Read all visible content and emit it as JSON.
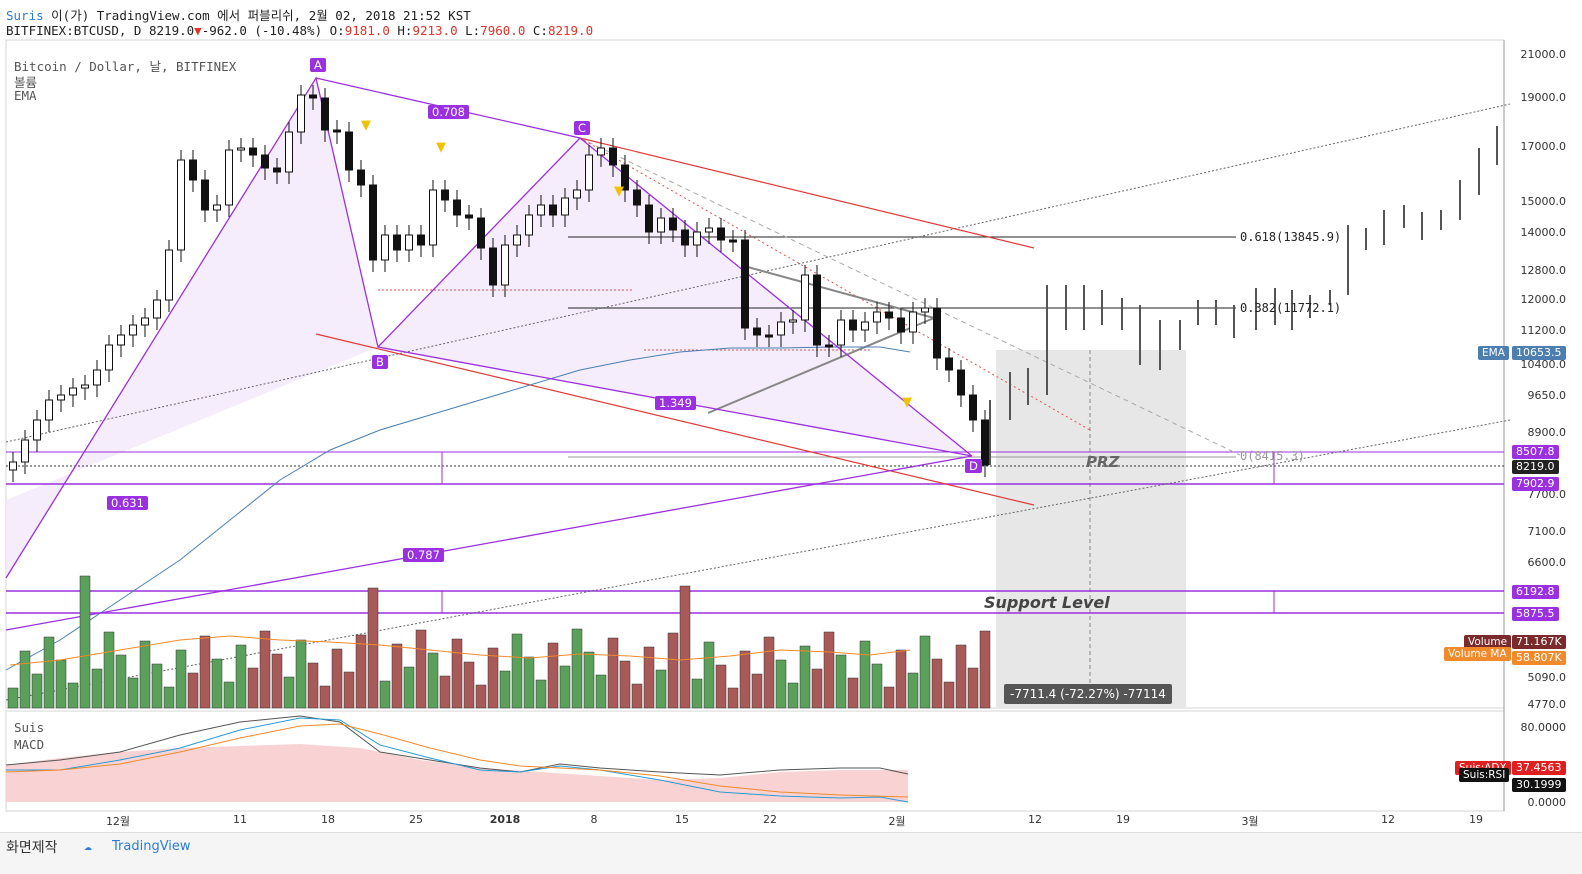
{
  "header": {
    "author": "Suris",
    "published": "이(가) TradingView.com 에서 퍼블리쉬, 2월 02, 2018 21:52 KST",
    "symbol": "BITFINEX:BTCUSD, D",
    "last": "8219.0",
    "change": "-962.0 (-10.48%)",
    "open_label": "O:",
    "open": "9181.0",
    "high_label": "H:",
    "high": "9213.0",
    "low_label": "L:",
    "low": "7960.0",
    "close_label": "C:",
    "close": "8219.0"
  },
  "legend": {
    "title": "Bitcoin / Dollar, 날, BITFINEX",
    "volume": "볼륨",
    "ema": "EMA",
    "osc1": "Suis",
    "osc2": "MACD"
  },
  "pattern": {
    "A": "A",
    "B": "B",
    "C": "C",
    "D": "D",
    "r_ab": "0.708",
    "r_bc": "0.631",
    "r_cd": "1.349",
    "r_xd": "0.787"
  },
  "fib": {
    "f618": "0.618(13845.9)",
    "f382": "0.382(11772.1)",
    "f0": "0(8415.3)"
  },
  "annotations": {
    "prz": "PRZ",
    "support": "Support Level",
    "measure": "-7711.4 (-72.27%) -77114"
  },
  "y_axis": [
    "21000.0",
    "19000.0",
    "17000.0",
    "15000.0",
    "14000.0",
    "12800.0",
    "12000.0",
    "11200.0",
    "10400.0",
    "9650.0",
    "8900.0",
    "7700.0",
    "7100.0",
    "6600.0",
    "5090.0",
    "4770.0"
  ],
  "x_axis": [
    "12월",
    "11",
    "18",
    "25",
    "2018",
    "8",
    "15",
    "22",
    "2월",
    "12",
    "19",
    "3월",
    "12",
    "19"
  ],
  "osc_axis": [
    "80.0000",
    "0.0000"
  ],
  "price_tags": {
    "ema": {
      "label": "EMA",
      "value": "10653.5"
    },
    "res1": "8507.8",
    "last": "8219.0",
    "sup1": "7902.9",
    "sup2": "6192.8",
    "sup3": "5875.5",
    "volume": {
      "label": "Volume",
      "value": "71.167K"
    },
    "volume_ma": {
      "label": "Volume MA",
      "value": "58.807K"
    },
    "adx": {
      "label": "Suis:ADX",
      "value": "37.4563"
    },
    "rsi": {
      "label": "Suis:RSI",
      "value": "30.1999"
    }
  },
  "footer": {
    "snapshot": "화면제작",
    "brand": "TradingView"
  },
  "colors": {
    "up": "#5aa05a",
    "down": "#a85a58",
    "pattern": "#9b30e0",
    "channel": "#e03a3a",
    "accent": "#2a7fd4"
  },
  "chart_data": {
    "type": "candlestick",
    "title": "Bitcoin / Dollar, 날, BITFINEX",
    "symbol": "BITFINEX:BTCUSD",
    "timeframe": "D",
    "last_bar": {
      "open": 9181.0,
      "high": 9213.0,
      "low": 7960.0,
      "close": 8219.0,
      "change": -962.0,
      "change_pct": -10.48
    },
    "indicators": [
      "Volume",
      "EMA",
      "Suis",
      "MACD"
    ],
    "ema_value": 10653.5,
    "volume_value": "71.167K",
    "volume_ma_value": "58.807K",
    "adx": 37.4563,
    "rsi": 30.1999,
    "fib_levels": [
      {
        "ratio": 0.618,
        "price": 13845.9
      },
      {
        "ratio": 0.382,
        "price": 11772.1
      },
      {
        "ratio": 0.0,
        "price": 8415.3
      }
    ],
    "harmonic": {
      "points": [
        "A",
        "B",
        "C",
        "D"
      ],
      "ratios": [
        0.708,
        0.631,
        1.349,
        0.787
      ]
    },
    "levels": [
      8507.8,
      8219.0,
      7902.9,
      6192.8,
      5875.5
    ],
    "projection": "-7711.4 (-72.27%) -77114"
  }
}
